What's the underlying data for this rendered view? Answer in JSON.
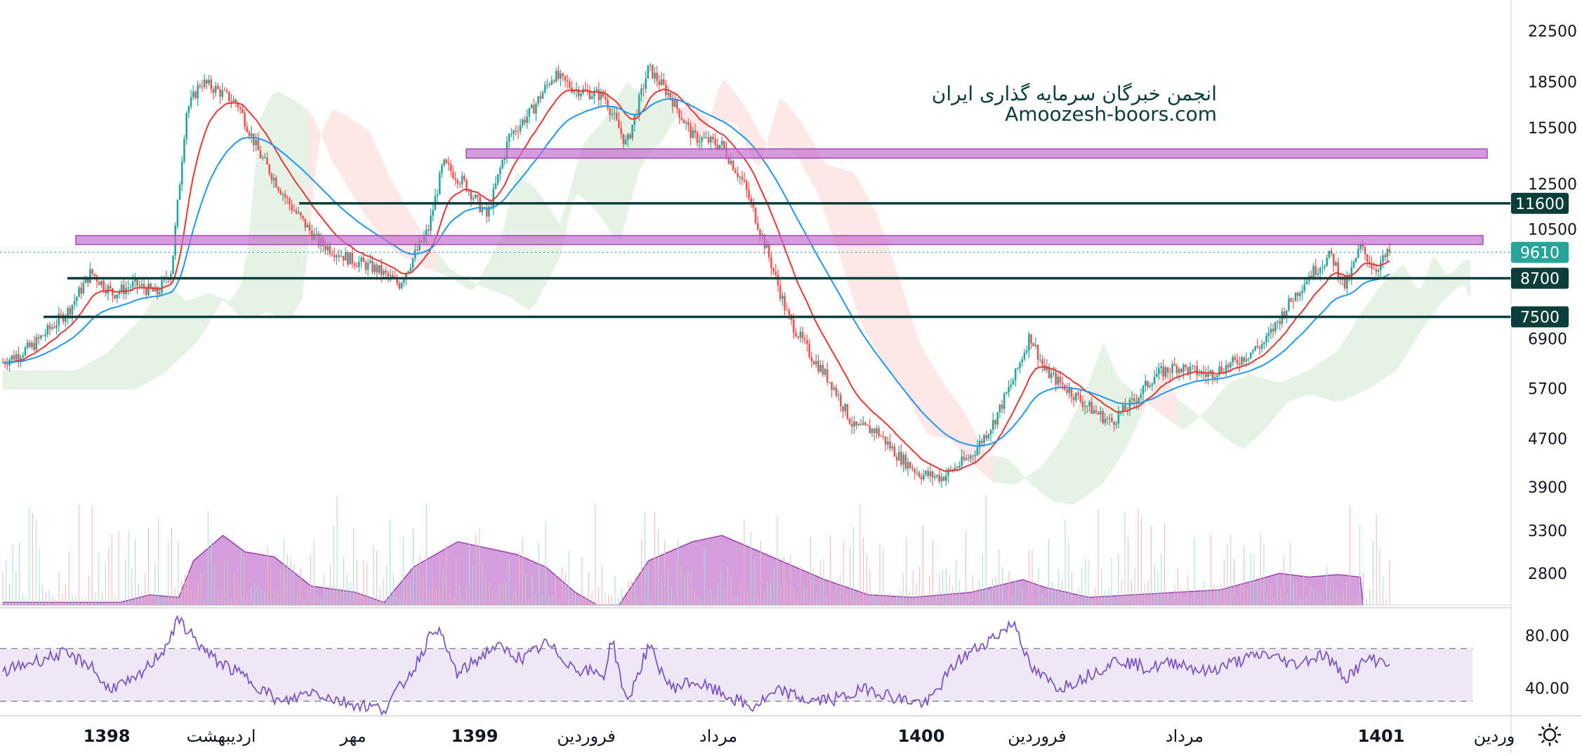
{
  "chart_data": [
    {
      "type": "candlestick",
      "title": "",
      "y_scale": "log",
      "ylim": [
        2600,
        23500
      ],
      "y_ticks": [
        22500,
        18500,
        15500,
        12500,
        10500,
        6900,
        5700,
        4700,
        3900,
        3300,
        2800
      ],
      "x_labels": [
        "1398",
        "اردیبهشت",
        "مهر",
        "1399",
        "فروردین",
        "مرداد",
        "1400",
        "فروردین",
        "مرداد",
        "1401",
        "وردین"
      ],
      "last_price": 9610,
      "support_resistance_lines": [
        11600,
        8700,
        7500
      ],
      "resistance_zones": [
        {
          "from": 9900,
          "to": 10250
        },
        {
          "from": 13800,
          "to": 14300
        }
      ],
      "price_path": [
        [
          0,
          6300
        ],
        [
          0.02,
          6700
        ],
        [
          0.045,
          7700
        ],
        [
          0.06,
          8900
        ],
        [
          0.075,
          8200
        ],
        [
          0.09,
          8500
        ],
        [
          0.105,
          8200
        ],
        [
          0.115,
          9000
        ],
        [
          0.125,
          16500
        ],
        [
          0.135,
          18500
        ],
        [
          0.145,
          18000
        ],
        [
          0.16,
          17000
        ],
        [
          0.175,
          14000
        ],
        [
          0.195,
          11600
        ],
        [
          0.215,
          10000
        ],
        [
          0.235,
          9400
        ],
        [
          0.255,
          9000
        ],
        [
          0.27,
          8500
        ],
        [
          0.29,
          10500
        ],
        [
          0.3,
          13500
        ],
        [
          0.315,
          12500
        ],
        [
          0.33,
          11000
        ],
        [
          0.345,
          15000
        ],
        [
          0.36,
          16500
        ],
        [
          0.375,
          19000
        ],
        [
          0.39,
          18000
        ],
        [
          0.41,
          17500
        ],
        [
          0.425,
          14500
        ],
        [
          0.44,
          19500
        ],
        [
          0.455,
          17500
        ],
        [
          0.47,
          15000
        ],
        [
          0.49,
          14500
        ],
        [
          0.505,
          12500
        ],
        [
          0.52,
          9800
        ],
        [
          0.535,
          7500
        ],
        [
          0.55,
          6500
        ],
        [
          0.565,
          5800
        ],
        [
          0.58,
          4900
        ],
        [
          0.595,
          4850
        ],
        [
          0.61,
          4400
        ],
        [
          0.625,
          4100
        ],
        [
          0.64,
          4050
        ],
        [
          0.66,
          4400
        ],
        [
          0.675,
          5000
        ],
        [
          0.69,
          6000
        ],
        [
          0.7,
          7000
        ],
        [
          0.71,
          6100
        ],
        [
          0.725,
          5700
        ],
        [
          0.74,
          5300
        ],
        [
          0.755,
          5000
        ],
        [
          0.77,
          5400
        ],
        [
          0.785,
          6000
        ],
        [
          0.8,
          6200
        ],
        [
          0.82,
          6000
        ],
        [
          0.84,
          6300
        ],
        [
          0.86,
          6800
        ],
        [
          0.875,
          7800
        ],
        [
          0.89,
          8800
        ],
        [
          0.905,
          9500
        ],
        [
          0.915,
          8400
        ],
        [
          0.925,
          9800
        ],
        [
          0.935,
          9000
        ],
        [
          0.945,
          9610
        ]
      ],
      "series": [
        {
          "name": "",
          "color": "#e53935",
          "role": "ema-short"
        },
        {
          "name": "",
          "color": "#2196f3",
          "role": "ema-long"
        }
      ],
      "volume_profile": [
        [
          0,
          0.02
        ],
        [
          0.08,
          0.02
        ],
        [
          0.1,
          0.08
        ],
        [
          0.12,
          0.06
        ],
        [
          0.13,
          0.35
        ],
        [
          0.15,
          0.55
        ],
        [
          0.165,
          0.42
        ],
        [
          0.185,
          0.38
        ],
        [
          0.21,
          0.15
        ],
        [
          0.24,
          0.1
        ],
        [
          0.26,
          0.02
        ],
        [
          0.28,
          0.3
        ],
        [
          0.31,
          0.5
        ],
        [
          0.33,
          0.45
        ],
        [
          0.35,
          0.4
        ],
        [
          0.37,
          0.3
        ],
        [
          0.39,
          0.1
        ],
        [
          0.405,
          0.0
        ],
        [
          0.42,
          0.0
        ],
        [
          0.44,
          0.35
        ],
        [
          0.47,
          0.5
        ],
        [
          0.49,
          0.55
        ],
        [
          0.51,
          0.45
        ],
        [
          0.53,
          0.35
        ],
        [
          0.56,
          0.2
        ],
        [
          0.59,
          0.08
        ],
        [
          0.62,
          0.06
        ],
        [
          0.66,
          0.1
        ],
        [
          0.695,
          0.2
        ],
        [
          0.71,
          0.14
        ],
        [
          0.74,
          0.06
        ],
        [
          0.77,
          0.08
        ],
        [
          0.8,
          0.1
        ],
        [
          0.83,
          0.12
        ],
        [
          0.855,
          0.2
        ],
        [
          0.87,
          0.25
        ],
        [
          0.89,
          0.22
        ],
        [
          0.91,
          0.24
        ],
        [
          0.925,
          0.22
        ],
        [
          0.927,
          0.0
        ]
      ],
      "rsi": {
        "levels": [
          70,
          30
        ],
        "ylim": [
          20,
          100
        ],
        "y_ticks": [
          80.0,
          40.0
        ],
        "tick_labels": [
          "80.00",
          "40.00"
        ],
        "path": [
          [
            0,
            52
          ],
          [
            0.02,
            60
          ],
          [
            0.04,
            66
          ],
          [
            0.06,
            58
          ],
          [
            0.07,
            40
          ],
          [
            0.09,
            45
          ],
          [
            0.11,
            70
          ],
          [
            0.12,
            92
          ],
          [
            0.14,
            65
          ],
          [
            0.17,
            45
          ],
          [
            0.19,
            28
          ],
          [
            0.21,
            38
          ],
          [
            0.23,
            30
          ],
          [
            0.26,
            24
          ],
          [
            0.28,
            55
          ],
          [
            0.295,
            88
          ],
          [
            0.31,
            50
          ],
          [
            0.335,
            72
          ],
          [
            0.355,
            62
          ],
          [
            0.37,
            74
          ],
          [
            0.39,
            55
          ],
          [
            0.41,
            50
          ],
          [
            0.415,
            78
          ],
          [
            0.425,
            28
          ],
          [
            0.44,
            72
          ],
          [
            0.455,
            40
          ],
          [
            0.47,
            45
          ],
          [
            0.49,
            36
          ],
          [
            0.51,
            25
          ],
          [
            0.53,
            38
          ],
          [
            0.55,
            30
          ],
          [
            0.57,
            32
          ],
          [
            0.59,
            40
          ],
          [
            0.61,
            32
          ],
          [
            0.63,
            28
          ],
          [
            0.65,
            60
          ],
          [
            0.67,
            75
          ],
          [
            0.69,
            90
          ],
          [
            0.7,
            55
          ],
          [
            0.72,
            40
          ],
          [
            0.74,
            50
          ],
          [
            0.76,
            62
          ],
          [
            0.78,
            55
          ],
          [
            0.8,
            60
          ],
          [
            0.82,
            52
          ],
          [
            0.84,
            60
          ],
          [
            0.86,
            66
          ],
          [
            0.88,
            58
          ],
          [
            0.9,
            66
          ],
          [
            0.915,
            48
          ],
          [
            0.93,
            62
          ],
          [
            0.945,
            60
          ]
        ]
      }
    }
  ],
  "watermark": {
    "line1": "انجمن خبرگان سرمایه گذاری ایران",
    "line2": "Amoozesh-boors.com"
  },
  "price_tags": [
    {
      "label": "11600",
      "color": "#0b3d3a"
    },
    {
      "label": "9610",
      "color": "#26a69a"
    },
    {
      "label": "8700",
      "color": "#0b3d3a"
    },
    {
      "label": "7500",
      "color": "#0b3d3a"
    }
  ],
  "colors": {
    "up": "#26a69a",
    "down": "#ef5350",
    "zone": "#c46fd0",
    "level": "#0b3d3a",
    "volume": "#b04fc0",
    "rsi_line": "#7e57c2",
    "rsi_band": "#ede7f6",
    "cloud_green": "#e6f2e6",
    "cloud_red": "#fde7e7"
  },
  "icons": {
    "settings": "sun-gear-icon"
  }
}
